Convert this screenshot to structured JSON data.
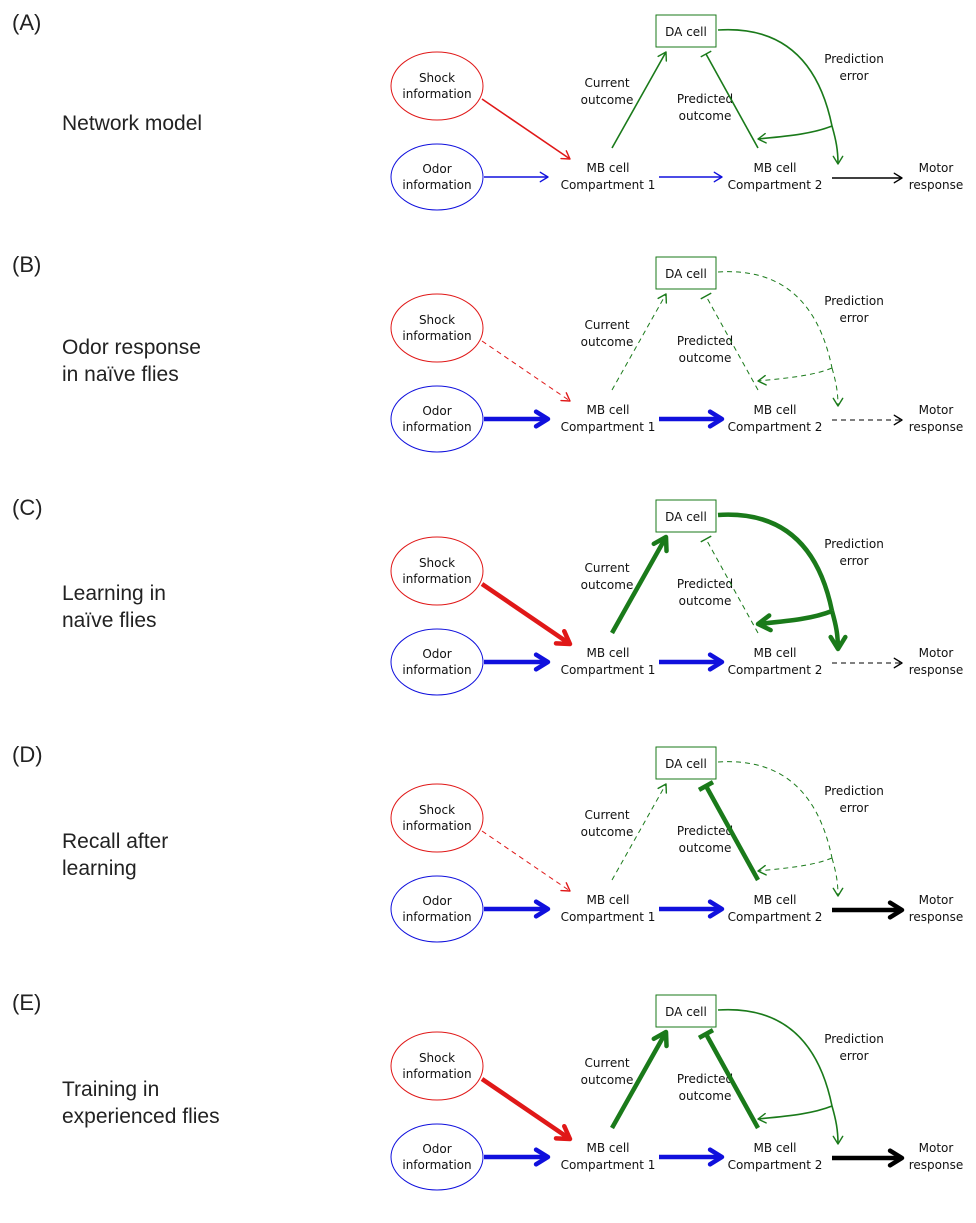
{
  "labels": {
    "shock_1": "Shock",
    "shock_2": "information",
    "odor_1": "Odor",
    "odor_2": "information",
    "da": "DA cell",
    "mb1_1": "MB cell",
    "mb1_2": "Compartment 1",
    "mb2_1": "MB cell",
    "mb2_2": "Compartment 2",
    "motor_1": "Motor",
    "motor_2": "response",
    "current_1": "Current",
    "current_2": "outcome",
    "predicted_1": "Predicted",
    "predicted_2": "outcome",
    "error_1": "Prediction",
    "error_2": "error"
  },
  "colors": {
    "shock": "#e01818",
    "odor": "#1010dd",
    "green": "#1a7a1a",
    "motor": "#000000"
  },
  "panels": [
    {
      "letter": "(A)",
      "caption": [
        "Network model"
      ],
      "edges": {
        "shock": {
          "style": "thin"
        },
        "odor_mb1": {
          "style": "thin"
        },
        "mb1_mb2": {
          "style": "thin"
        },
        "current": {
          "style": "thin"
        },
        "predicted": {
          "style": "thin"
        },
        "error": {
          "style": "thin"
        },
        "motor": {
          "style": "thin"
        }
      }
    },
    {
      "letter": "(B)",
      "caption": [
        "Odor response",
        "in naïve flies"
      ],
      "edges": {
        "shock": {
          "style": "dashed"
        },
        "odor_mb1": {
          "style": "thick"
        },
        "mb1_mb2": {
          "style": "thick"
        },
        "current": {
          "style": "dashed"
        },
        "predicted": {
          "style": "dashed"
        },
        "error": {
          "style": "dashed"
        },
        "motor": {
          "style": "dashed"
        }
      }
    },
    {
      "letter": "(C)",
      "caption": [
        "Learning in",
        "naïve flies"
      ],
      "edges": {
        "shock": {
          "style": "thick"
        },
        "odor_mb1": {
          "style": "thick"
        },
        "mb1_mb2": {
          "style": "thick"
        },
        "current": {
          "style": "thick"
        },
        "predicted": {
          "style": "dashed"
        },
        "error": {
          "style": "thick"
        },
        "motor": {
          "style": "dashed"
        }
      }
    },
    {
      "letter": "(D)",
      "caption": [
        "Recall after",
        "learning"
      ],
      "edges": {
        "shock": {
          "style": "dashed"
        },
        "odor_mb1": {
          "style": "thick"
        },
        "mb1_mb2": {
          "style": "thick"
        },
        "current": {
          "style": "dashed"
        },
        "predicted": {
          "style": "thick"
        },
        "error": {
          "style": "dashed"
        },
        "motor": {
          "style": "thick"
        }
      }
    },
    {
      "letter": "(E)",
      "caption": [
        "Training in",
        "experienced flies"
      ],
      "edges": {
        "shock": {
          "style": "thick"
        },
        "odor_mb1": {
          "style": "thick"
        },
        "mb1_mb2": {
          "style": "thick"
        },
        "current": {
          "style": "thick"
        },
        "predicted": {
          "style": "thick"
        },
        "error": {
          "style": "thin"
        },
        "motor": {
          "style": "thick"
        }
      }
    }
  ]
}
